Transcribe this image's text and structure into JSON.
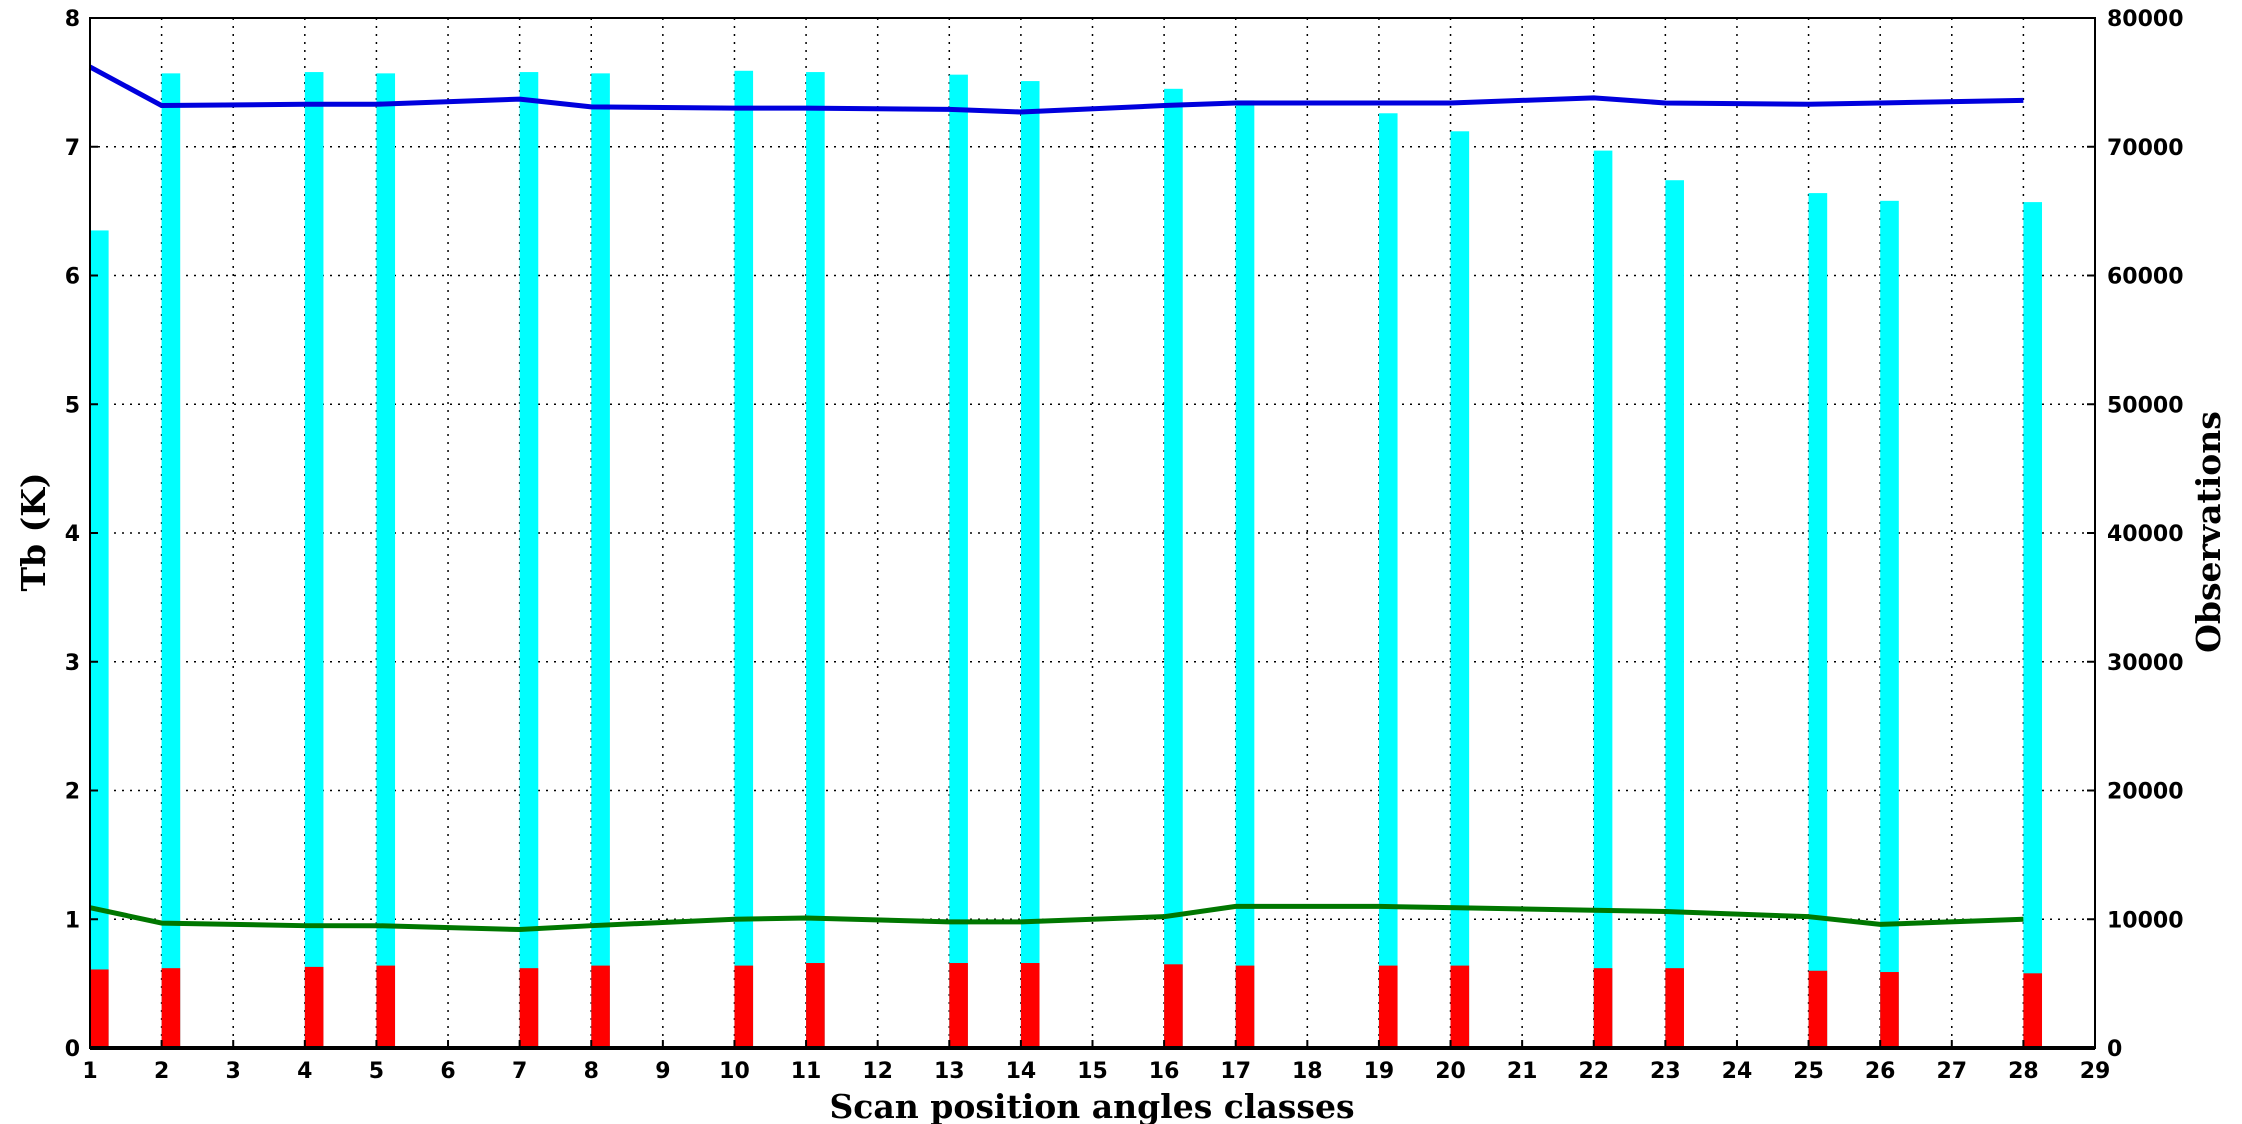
{
  "chart_data": {
    "type": "bar",
    "xlabel": "Scan position angles classes",
    "ylabel": "Tb (K)",
    "y2label": "Observations",
    "xlim": [
      1,
      29
    ],
    "ylim": [
      0,
      8
    ],
    "y2lim": [
      0,
      80000
    ],
    "x_ticks": [
      1,
      2,
      3,
      4,
      5,
      6,
      7,
      8,
      9,
      10,
      11,
      12,
      13,
      14,
      15,
      16,
      17,
      18,
      19,
      20,
      21,
      22,
      23,
      24,
      25,
      26,
      27,
      28,
      29
    ],
    "y_ticks": [
      0,
      1,
      2,
      3,
      4,
      5,
      6,
      7,
      8
    ],
    "y2_ticks": [
      0,
      10000,
      20000,
      30000,
      40000,
      50000,
      60000,
      70000,
      80000
    ],
    "grid": true,
    "legend": "none",
    "bars": {
      "x": [
        1,
        2,
        4,
        5,
        7,
        8,
        10,
        11,
        13,
        14,
        16,
        17,
        19,
        20,
        22,
        23,
        25,
        26,
        28
      ],
      "cyan_observations": [
        63500,
        75700,
        75800,
        75700,
        75800,
        75700,
        75900,
        75800,
        75600,
        75100,
        74500,
        73600,
        72600,
        71200,
        69700,
        67400,
        66400,
        65800,
        65700
      ],
      "red_observations": [
        6100,
        6200,
        6300,
        6400,
        6200,
        6400,
        6400,
        6600,
        6600,
        6600,
        6500,
        6400,
        6400,
        6400,
        6200,
        6200,
        6000,
        5900,
        5800
      ],
      "cyan_color": "#00ffff",
      "red_color": "#ff0000"
    },
    "series": [
      {
        "color": "#0000dd",
        "x": [
          1,
          2,
          4,
          5,
          7,
          8,
          10,
          11,
          13,
          14,
          16,
          17,
          19,
          20,
          22,
          23,
          25,
          26,
          28
        ],
        "y": [
          7.62,
          7.32,
          7.33,
          7.33,
          7.37,
          7.31,
          7.3,
          7.3,
          7.29,
          7.27,
          7.32,
          7.34,
          7.34,
          7.34,
          7.38,
          7.34,
          7.33,
          7.34,
          7.36
        ]
      },
      {
        "color": "#007700",
        "x": [
          1,
          2,
          4,
          5,
          7,
          8,
          10,
          11,
          13,
          14,
          16,
          17,
          19,
          20,
          22,
          23,
          25,
          26,
          28
        ],
        "y": [
          1.09,
          0.97,
          0.95,
          0.95,
          0.92,
          0.95,
          1.0,
          1.01,
          0.98,
          0.98,
          1.02,
          1.1,
          1.1,
          1.09,
          1.07,
          1.06,
          1.02,
          0.96,
          1.0
        ]
      }
    ]
  }
}
